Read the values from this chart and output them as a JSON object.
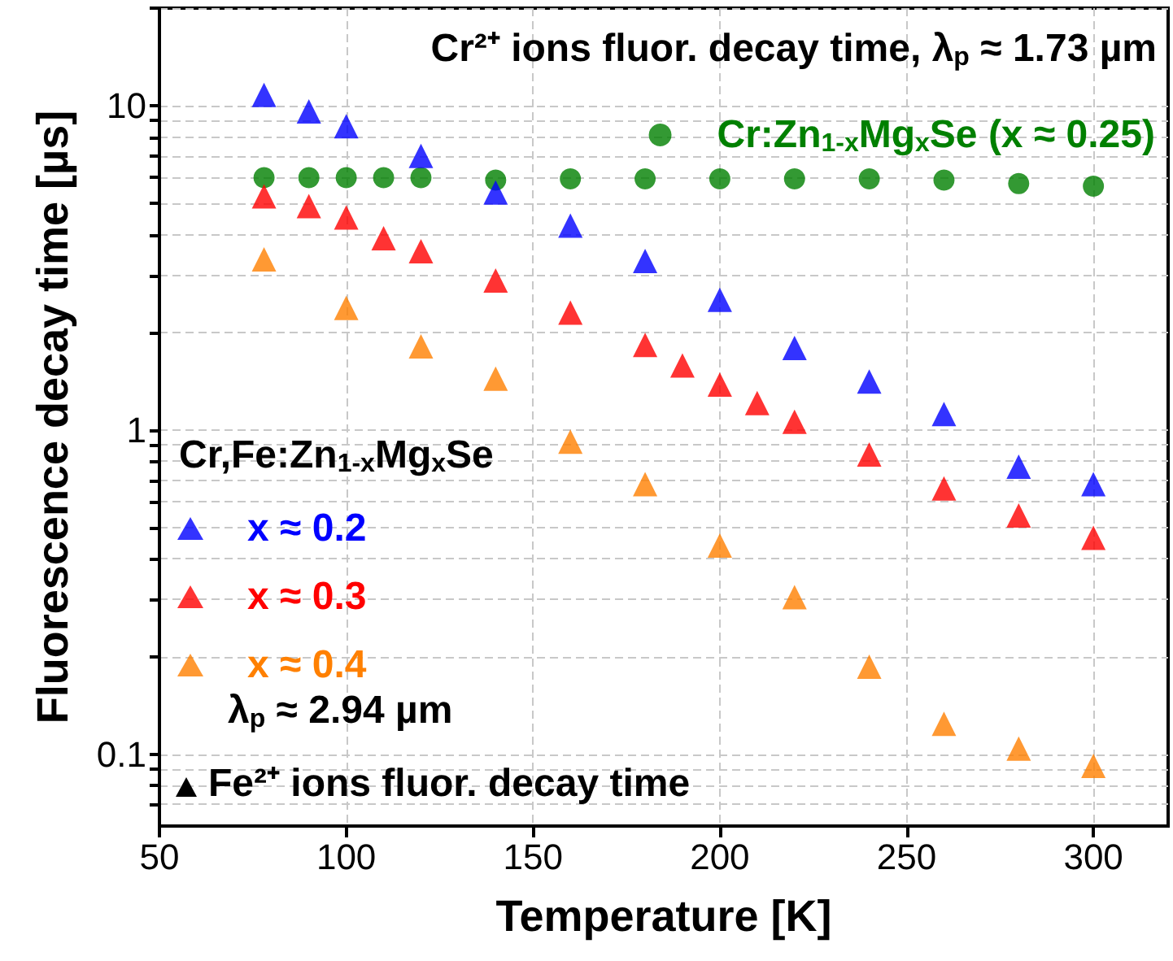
{
  "chart_data": {
    "type": "scatter",
    "xlabel": "Temperature [K]",
    "ylabel": "Fluorescence decay time [µs]",
    "legend_title": "Cr,Fe:Zn$_{1-x}$Mg$_{x}$Se",
    "annotations": [
      "Cr²⁺ ions fluor. decay time, λ$_{p}$ ≈ 1.73 µm",
      "λ$_{p}$ ≈ 2.94 µm",
      "Fe²⁺ ions fluor. decay time"
    ],
    "series": [
      {
        "name": "Cr:Zn$_{1-x}$Mg$_{x}$Se (x ≈ 0.25)",
        "color": "#008000",
        "marker": "circle",
        "x": [
          78,
          90,
          100,
          110,
          120,
          140,
          160,
          180,
          200,
          220,
          240,
          260,
          280,
          300
        ],
        "values": [
          6.0,
          6.0,
          6.0,
          6.0,
          6.0,
          5.9,
          5.95,
          5.95,
          5.95,
          5.95,
          5.95,
          5.9,
          5.75,
          5.65
        ]
      },
      {
        "name": "x ≈ 0.2",
        "color": "#0000ff",
        "marker": "triangle",
        "x": [
          78,
          90,
          100,
          120,
          140,
          160,
          180,
          200,
          220,
          240,
          260,
          280,
          300
        ],
        "values": [
          10.8,
          9.6,
          8.65,
          7.0,
          5.4,
          4.27,
          3.32,
          2.52,
          1.79,
          1.41,
          1.12,
          0.77,
          0.68
        ]
      },
      {
        "name": "x ≈ 0.3",
        "color": "#ff0000",
        "marker": "triangle",
        "x": [
          78,
          90,
          100,
          110,
          120,
          140,
          160,
          180,
          190,
          200,
          210,
          220,
          240,
          260,
          280,
          300
        ],
        "values": [
          5.25,
          4.9,
          4.52,
          3.9,
          3.56,
          2.89,
          2.3,
          1.83,
          1.58,
          1.38,
          1.21,
          1.06,
          0.84,
          0.66,
          0.545,
          0.465
        ]
      },
      {
        "name": "x ≈ 0.4",
        "color": "#ff8000",
        "marker": "triangle",
        "x": [
          78,
          100,
          120,
          140,
          160,
          180,
          200,
          220,
          240,
          260,
          280,
          300
        ],
        "values": [
          3.36,
          2.38,
          1.81,
          1.44,
          0.92,
          0.68,
          0.44,
          0.305,
          0.186,
          0.124,
          0.104,
          0.092
        ]
      }
    ],
    "xlim": [
      50,
      320
    ],
    "xticks": [
      50,
      100,
      150,
      200,
      250,
      300
    ],
    "ylim": [
      0.06,
      20
    ],
    "yticks": [
      {
        "value": 0.07,
        "label": null
      },
      {
        "value": 0.08,
        "label": null
      },
      {
        "value": 0.09,
        "label": null
      },
      0.1,
      {
        "value": 0.2,
        "label": null
      },
      {
        "value": 0.3,
        "label": null
      },
      {
        "value": 0.4,
        "label": null
      },
      {
        "value": 0.5,
        "label": null
      },
      {
        "value": 0.6,
        "label": null
      },
      {
        "value": 0.7,
        "label": null
      },
      {
        "value": 0.8,
        "label": null
      },
      {
        "value": 0.9,
        "label": null
      },
      1,
      {
        "value": 2,
        "label": null
      },
      {
        "value": 3,
        "label": null
      },
      {
        "value": 4,
        "label": null
      },
      {
        "value": 5,
        "label": null
      },
      {
        "value": 6,
        "label": null
      },
      {
        "value": 7,
        "label": null
      },
      {
        "value": 8,
        "label": null
      },
      {
        "value": 9,
        "label": null
      },
      10,
      {
        "value": 20,
        "label": null
      }
    ],
    "log": "y",
    "grid": true,
    "legend": "left"
  }
}
